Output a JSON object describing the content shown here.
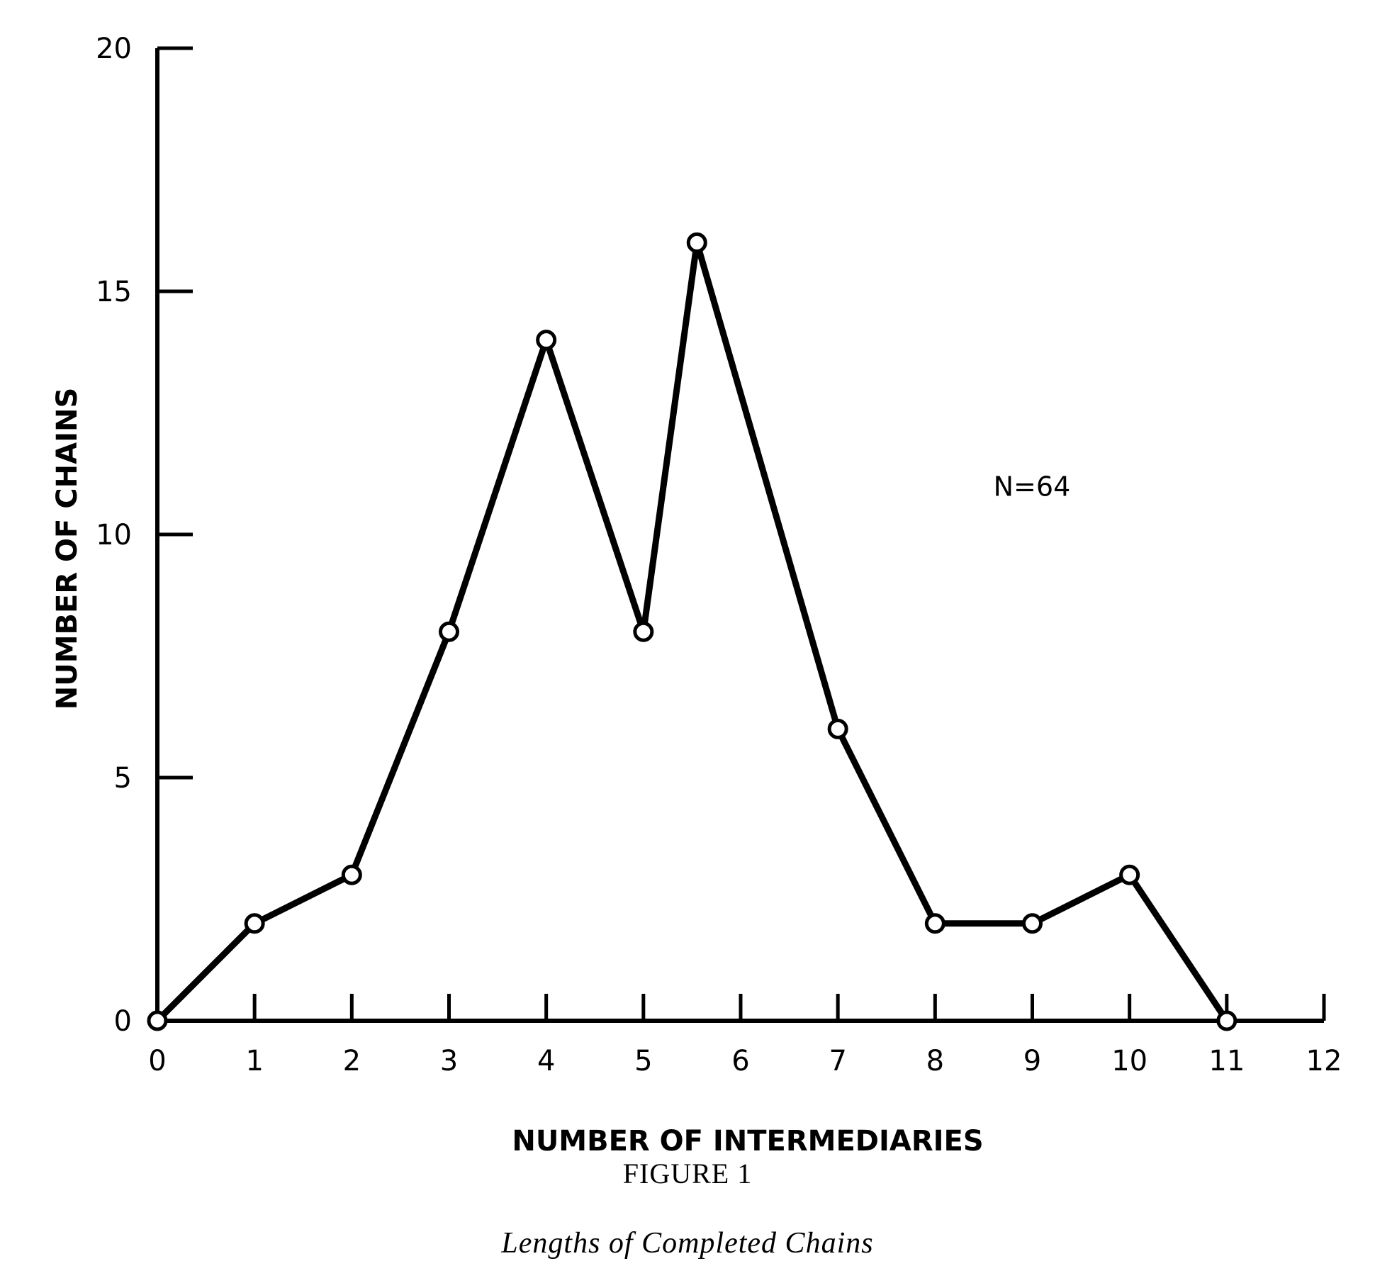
{
  "chart_data": {
    "type": "line",
    "xlabel": "NUMBER OF INTERMEDIARIES",
    "ylabel": "NUMBER OF CHAINS",
    "xlim": [
      0,
      12
    ],
    "ylim": [
      0,
      20
    ],
    "x_ticks": [
      0,
      1,
      2,
      3,
      4,
      5,
      6,
      7,
      8,
      9,
      10,
      11,
      12
    ],
    "x_tick_labels": [
      "0",
      "1",
      "2",
      "3",
      "4",
      "5",
      "6",
      "7",
      "8",
      "9",
      "10",
      "11",
      "12"
    ],
    "y_ticks": [
      0,
      5,
      10,
      15,
      20
    ],
    "y_tick_labels": [
      "0",
      "5",
      "10",
      "15",
      "20"
    ],
    "grid": false,
    "series": [
      {
        "x": [
          0,
          1,
          2,
          3,
          4,
          5,
          5.55,
          7,
          8,
          9,
          10,
          11
        ],
        "values": [
          0,
          2,
          3,
          8,
          14,
          8,
          16,
          6,
          2,
          2,
          3,
          0
        ]
      }
    ],
    "annotations": [
      {
        "text": "N=64",
        "x": 8.6,
        "y": 11
      }
    ],
    "line_color": "#000000",
    "marker_fill": "#ffffff"
  },
  "figure": {
    "number": "FIGURE 1",
    "caption": "Lengths of Completed Chains"
  }
}
